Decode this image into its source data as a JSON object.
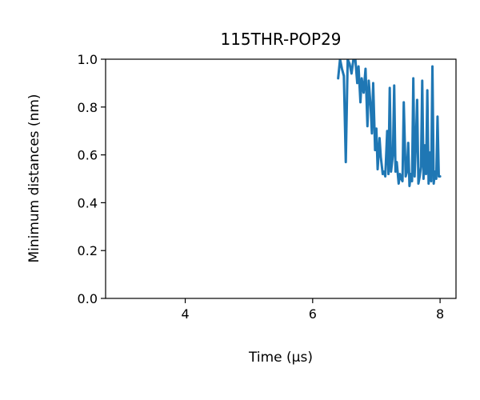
{
  "chart_data": {
    "type": "line",
    "title": "115THR-POP29",
    "xlabel": "Time (μs)",
    "ylabel": "Minimum distances (nm)",
    "xlim": [
      2.75,
      8.25
    ],
    "ylim": [
      0.0,
      1.0
    ],
    "xticks": [
      "4",
      "6",
      "8"
    ],
    "xtick_values": [
      4,
      6,
      8
    ],
    "yticks": [
      "0.0",
      "0.2",
      "0.4",
      "0.6",
      "0.8",
      "1.0"
    ],
    "ytick_values": [
      0.0,
      0.2,
      0.4,
      0.6,
      0.8,
      1.0
    ],
    "grid": false,
    "series": [
      {
        "color": "#1f77b4",
        "x": [
          6.4,
          6.43,
          6.46,
          6.49,
          6.52,
          6.55,
          6.58,
          6.61,
          6.64,
          6.67,
          6.7,
          6.72,
          6.75,
          6.77,
          6.8,
          6.83,
          6.86,
          6.88,
          6.91,
          6.93,
          6.95,
          6.98,
          7.0,
          7.02,
          7.05,
          7.07,
          7.1,
          7.12,
          7.14,
          7.17,
          7.19,
          7.21,
          7.23,
          7.26,
          7.28,
          7.3,
          7.32,
          7.35,
          7.37,
          7.39,
          7.41,
          7.43,
          7.46,
          7.48,
          7.5,
          7.52,
          7.54,
          7.56,
          7.58,
          7.6,
          7.62,
          7.64,
          7.66,
          7.68,
          7.7,
          7.72,
          7.74,
          7.76,
          7.78,
          7.8,
          7.82,
          7.84,
          7.86,
          7.88,
          7.9,
          7.92,
          7.94,
          7.96,
          7.98,
          8.0
        ],
        "y": [
          0.92,
          1.0,
          0.96,
          0.93,
          0.57,
          1.0,
          0.98,
          0.94,
          1.0,
          1.0,
          0.9,
          0.97,
          0.82,
          0.92,
          0.86,
          0.96,
          0.72,
          0.91,
          0.8,
          0.69,
          0.9,
          0.62,
          0.71,
          0.54,
          0.67,
          0.59,
          0.52,
          0.53,
          0.51,
          0.7,
          0.52,
          0.88,
          0.53,
          0.6,
          0.89,
          0.53,
          0.57,
          0.48,
          0.52,
          0.5,
          0.49,
          0.82,
          0.51,
          0.53,
          0.65,
          0.47,
          0.52,
          0.49,
          0.92,
          0.51,
          0.65,
          0.83,
          0.48,
          0.51,
          0.55,
          0.91,
          0.5,
          0.64,
          0.52,
          0.87,
          0.48,
          0.61,
          0.49,
          0.97,
          0.48,
          0.53,
          0.5,
          0.76,
          0.51,
          0.51
        ]
      }
    ]
  }
}
